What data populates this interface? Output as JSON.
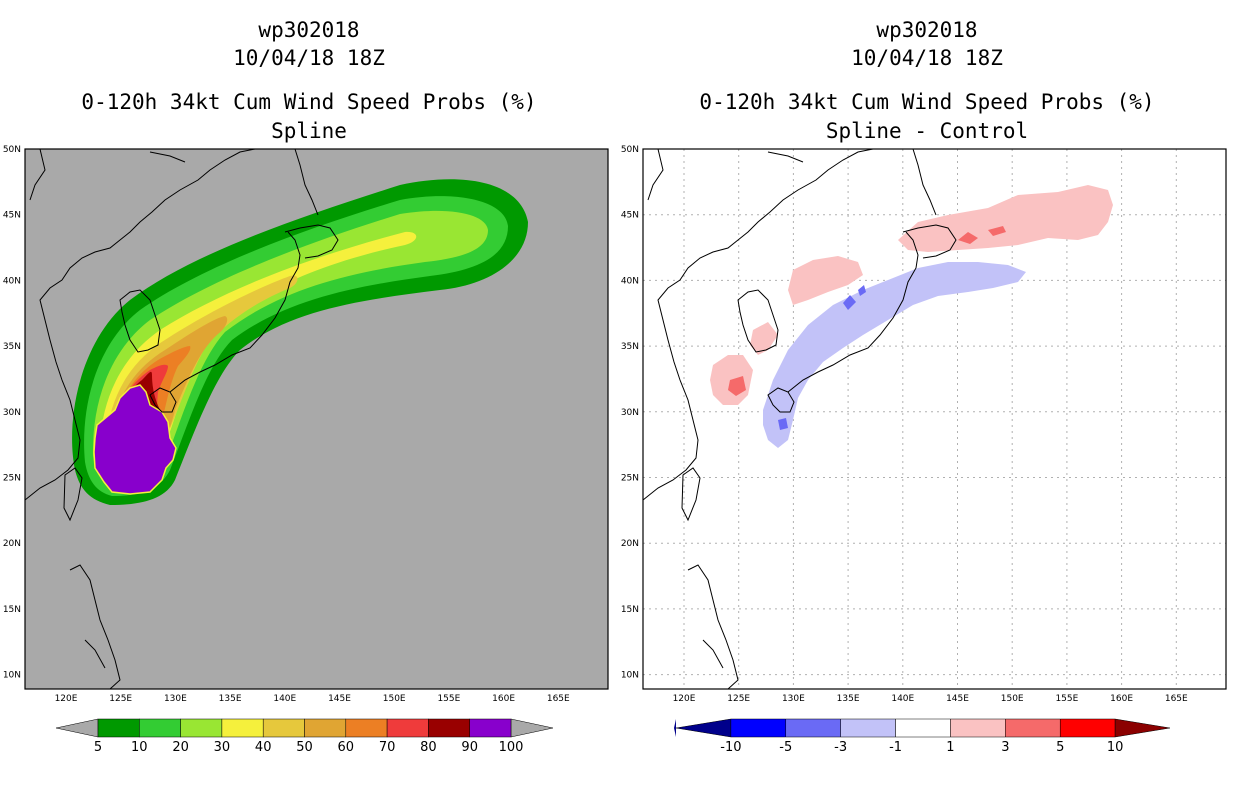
{
  "left_panel": {
    "storm_id": "wp302018",
    "datetime": "10/04/18 18Z",
    "title": "0-120h 34kt Cum Wind Speed Probs (%)",
    "subtitle": "Spline",
    "background_color": "#a9a9a9",
    "colorbar": {
      "colors": [
        "#009900",
        "#33cc33",
        "#99e633",
        "#f5f03c",
        "#e6c83c",
        "#e0a533",
        "#ec7f24",
        "#ef3b3b",
        "#990000",
        "#8800cc"
      ],
      "labels": [
        "5",
        "10",
        "20",
        "30",
        "40",
        "50",
        "60",
        "70",
        "80",
        "90",
        "100"
      ]
    }
  },
  "right_panel": {
    "storm_id": "wp302018",
    "datetime": "10/04/18 18Z",
    "title": "0-120h 34kt Cum Wind Speed Probs (%)",
    "subtitle": "Spline - Control",
    "background_color": "#ffffff",
    "colorbar": {
      "colors": [
        "#00008b",
        "#0000ff",
        "#6a6af5",
        "#c2c2f8",
        "#ffffff",
        "#fac2c2",
        "#f56a6a",
        "#ff0000",
        "#8b0000"
      ],
      "labels": [
        "-10",
        "-5",
        "-3",
        "-1",
        "1",
        "3",
        "5",
        "10"
      ]
    }
  },
  "axes": {
    "lon_labels": [
      "120E",
      "125E",
      "130E",
      "135E",
      "140E",
      "145E",
      "150E",
      "155E",
      "160E",
      "165E"
    ],
    "lat_labels": [
      "50N",
      "45N",
      "40N",
      "35N",
      "30N",
      "25N",
      "20N",
      "15N",
      "10N"
    ]
  }
}
